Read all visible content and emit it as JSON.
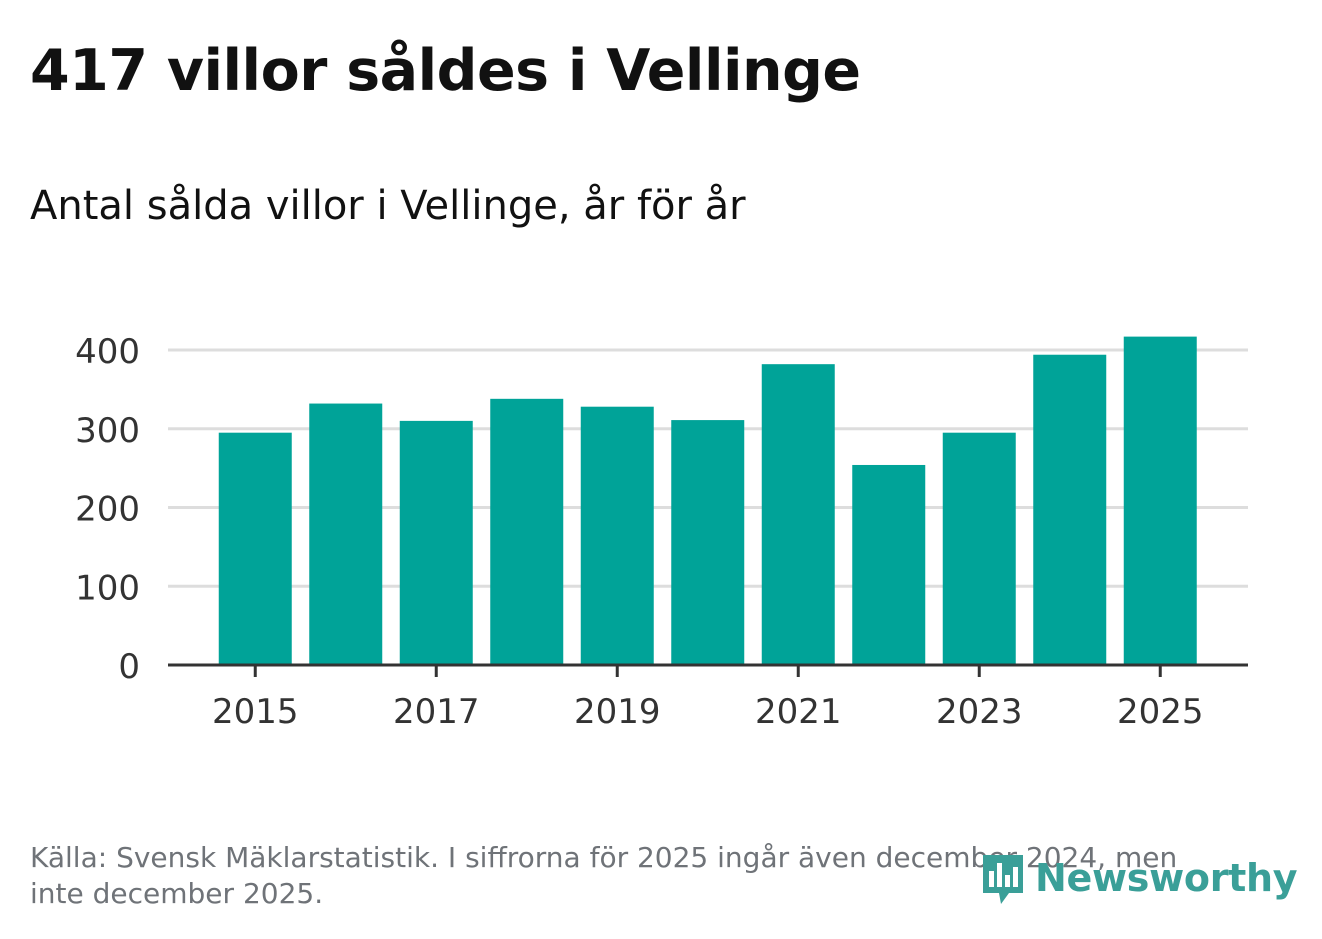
{
  "header": {
    "title": "417 villor såldes i Vellinge",
    "subtitle": "Antal sålda villor i Vellinge, år för år"
  },
  "footer": {
    "source_note": "Källa: Svensk Mäklarstatistik. I siffrorna för 2025 ingår även december 2024, men inte december 2025."
  },
  "brand": {
    "name": "Newsworthy",
    "logo_icon": "bar-chart-speech-bubble-icon",
    "color": "#3a9f98"
  },
  "colors": {
    "bar": "#00a398",
    "grid": "#dddddd",
    "axis": "#333333",
    "tick_text": "#333333"
  },
  "chart_data": {
    "type": "bar",
    "title": "417 villor såldes i Vellinge",
    "subtitle": "Antal sålda villor i Vellinge, år för år",
    "xlabel": "",
    "ylabel": "",
    "categories": [
      "2015",
      "2016",
      "2017",
      "2018",
      "2019",
      "2020",
      "2021",
      "2022",
      "2023",
      "2024",
      "2025"
    ],
    "values": [
      295,
      332,
      310,
      338,
      328,
      311,
      382,
      254,
      295,
      394,
      417
    ],
    "ylim": [
      0,
      400
    ],
    "yticks": [
      0,
      100,
      200,
      300,
      400
    ],
    "xtick_labels": [
      "2015",
      "2017",
      "2019",
      "2021",
      "2023",
      "2025"
    ],
    "grid": true,
    "legend": "none"
  }
}
